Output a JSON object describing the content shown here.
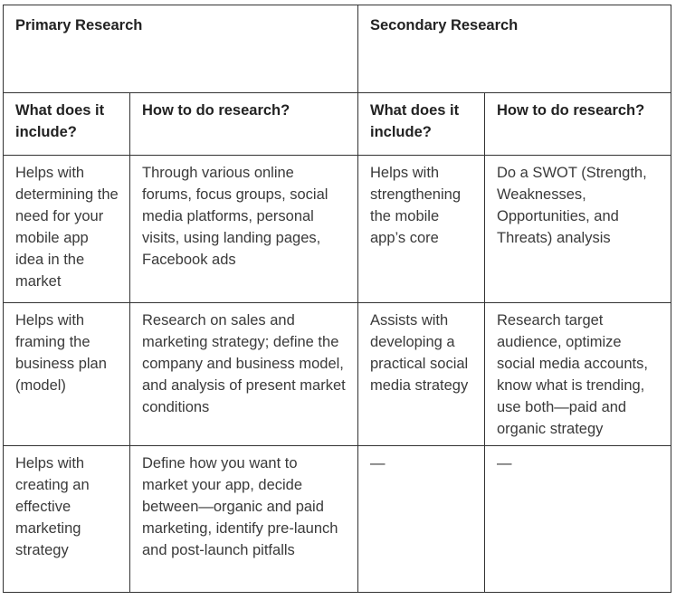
{
  "headers": {
    "primary": "Primary Research",
    "secondary": "Secondary Research"
  },
  "subheaders": {
    "primary_include": "What does it include?",
    "primary_how": "How to do research?",
    "secondary_include": "What does it include?",
    "secondary_how": "How to do research?"
  },
  "rows": [
    {
      "primary_include": "Helps with determining the need for your mobile app idea in the market",
      "primary_how": "Through various online forums, focus groups, social media platforms, personal visits, using landing pages, Facebook ads",
      "secondary_include": "Helps with strengthening the mobile app’s core",
      "secondary_how": "Do a SWOT (Strength, Weaknesses, Opportunities, and Threats) analysis"
    },
    {
      "primary_include": "Helps with framing the business plan (model)",
      "primary_how": "Research on sales and marketing strategy; define the company and business model, and analysis of present market conditions",
      "secondary_include": "Assists with developing a practical social media strategy",
      "secondary_how": "Research target audience, optimize social media accounts, know what is trending, use both—paid and organic strategy"
    },
    {
      "primary_include": "Helps with creating an effective marketing strategy",
      "primary_how": "Define how you want to market your app, decide between—organic and paid marketing, identify pre-launch and post-launch pitfalls",
      "secondary_include": "—",
      "secondary_how": "—"
    }
  ]
}
